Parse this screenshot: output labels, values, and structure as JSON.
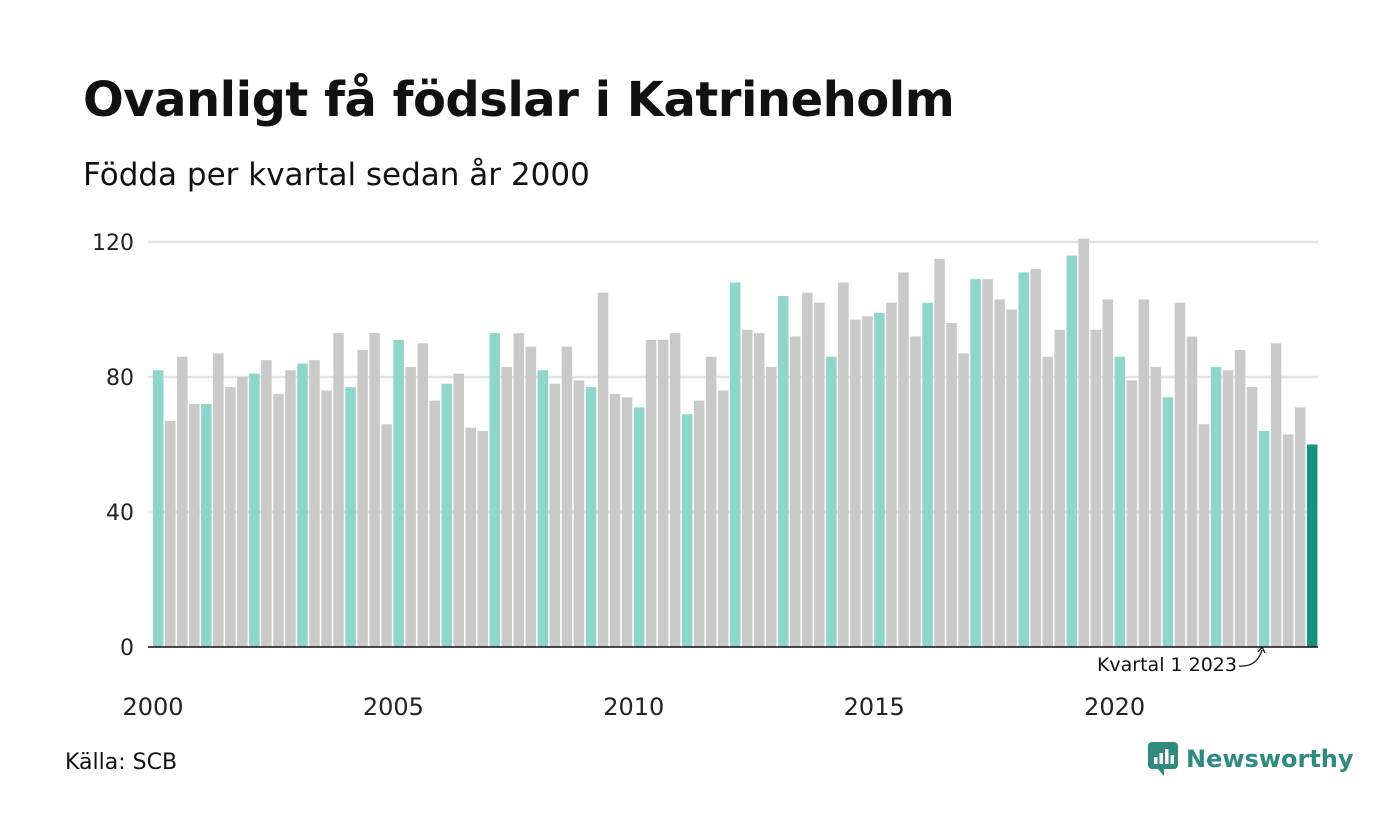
{
  "chart_data": {
    "type": "bar",
    "title": "Ovanligt få födslar i Katrineholm",
    "subtitle": "Födda per kvartal sedan år 2000",
    "xlabel": "",
    "ylabel": "",
    "x_tick_labels": [
      "2000",
      "2005",
      "2010",
      "2015",
      "2020"
    ],
    "y_ticks": [
      0,
      40,
      80,
      120
    ],
    "ylim": [
      0,
      120
    ],
    "grid": true,
    "quarter_colors": {
      "q1": "#8ed6cc",
      "other": "#c9c9c9",
      "latest": "#17917f"
    },
    "series": [
      {
        "values": [
          82,
          67,
          86,
          72,
          72,
          87,
          77,
          80,
          81,
          85,
          75,
          82,
          84,
          85,
          76,
          93,
          77,
          88,
          93,
          66,
          91,
          83,
          90,
          73,
          78,
          81,
          65,
          64,
          93,
          83,
          93,
          89,
          82,
          78,
          89,
          79,
          77,
          105,
          75,
          74,
          71,
          91,
          91,
          93,
          69,
          73,
          86,
          76,
          108,
          94,
          93,
          83,
          104,
          92,
          105,
          102,
          86,
          108,
          97,
          98,
          99,
          102,
          111,
          92,
          102,
          115,
          96,
          87,
          109,
          109,
          103,
          100,
          111,
          112,
          86,
          94,
          116,
          121,
          94,
          103,
          86,
          79,
          103,
          83,
          74,
          102,
          92,
          66,
          83,
          82,
          88,
          77,
          64,
          90,
          63,
          71,
          60
        ]
      }
    ],
    "annotation": "Kvartal 1 2023"
  },
  "footer": {
    "source": "Källa: SCB",
    "brand": "Newsworthy"
  }
}
